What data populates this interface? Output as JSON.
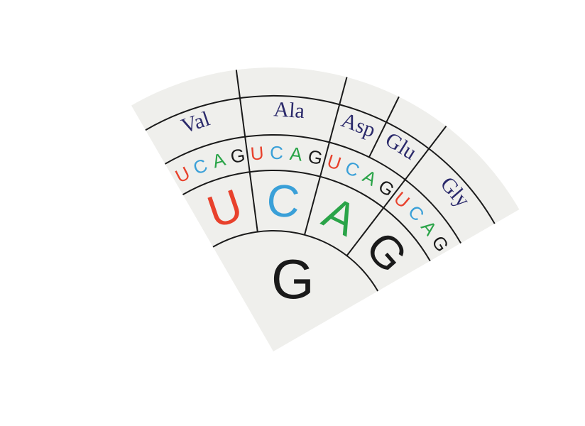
{
  "colors": {
    "U": "#e8412c",
    "C": "#3aa0d8",
    "A": "#2aa448",
    "G": "#1a1a1a",
    "amino": "#2b2a6b"
  },
  "first_base": "G",
  "second_bases": [
    "U",
    "C",
    "A",
    "G"
  ],
  "third_base_groups": [
    [
      "U",
      "C",
      "A",
      "G"
    ],
    [
      "U",
      "C",
      "A",
      "G"
    ],
    [
      "U",
      "C",
      "A",
      "G"
    ],
    [
      "U",
      "C",
      "A",
      "G"
    ]
  ],
  "amino_acids": [
    "Val",
    "Ala",
    "Asp",
    "Glu",
    "Gly"
  ]
}
